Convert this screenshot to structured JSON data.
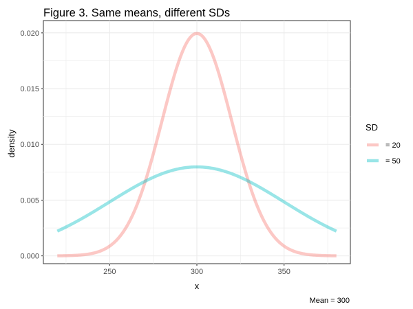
{
  "chart_data": {
    "type": "line",
    "title": "Figure 3. Same means, different SDs",
    "xlabel": "x",
    "ylabel": "density",
    "caption": "Mean = 300",
    "xlim": [
      212,
      388
    ],
    "ylim": [
      -0.0007,
      0.0211
    ],
    "x_ticks": [
      250,
      300,
      350
    ],
    "x_tick_labels": [
      "250",
      "300",
      "350"
    ],
    "y_ticks": [
      0,
      0.005,
      0.01,
      0.015,
      0.02
    ],
    "y_tick_labels": [
      "0.000",
      "0.005",
      "0.010",
      "0.015",
      "0.020"
    ],
    "x_range": [
      220,
      380
    ],
    "mean": 300,
    "grid": true,
    "legend_position": "right",
    "legend": {
      "title": "SD",
      "items": [
        {
          "label": "= 20",
          "color": "#f8766d"
        },
        {
          "label": "= 50",
          "color": "#00bfc4"
        }
      ]
    },
    "series": [
      {
        "name": "= 20",
        "sd": 20,
        "color": "#f8766d"
      },
      {
        "name": "= 50",
        "sd": 50,
        "color": "#00bfc4"
      }
    ]
  }
}
